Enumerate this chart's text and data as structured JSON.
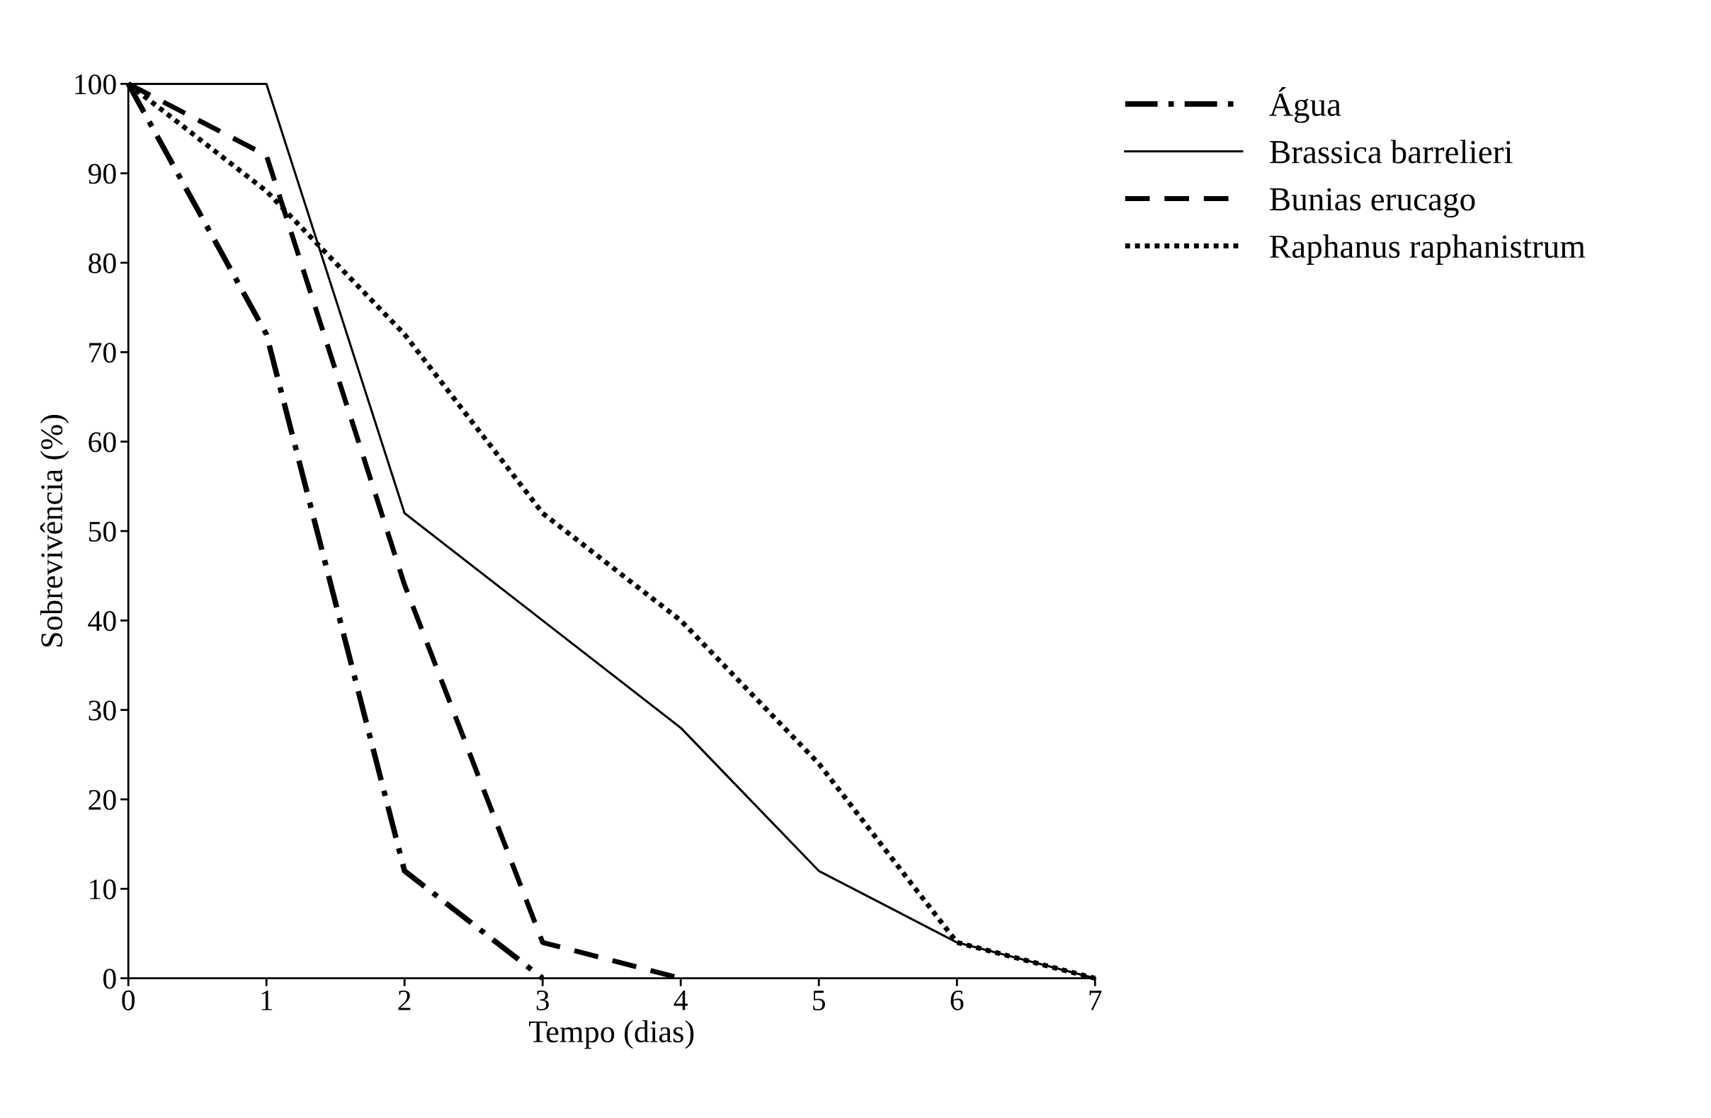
{
  "chart_data": {
    "type": "line",
    "xlabel": "Tempo (dias)",
    "ylabel": "Sobrevivência (%)",
    "x": [
      0,
      1,
      2,
      3,
      4,
      5,
      6,
      7
    ],
    "series": [
      {
        "name": "Água",
        "color": "#000000",
        "line_style": "dashdot",
        "values": [
          100,
          72,
          12,
          0,
          null,
          null,
          null,
          null
        ]
      },
      {
        "name": "Brassica barrelieri",
        "color": "#000000",
        "line_style": "solid",
        "values": [
          100,
          100,
          52,
          40,
          28,
          12,
          4,
          0
        ]
      },
      {
        "name": "Bunias erucago",
        "color": "#000000",
        "line_style": "dashed",
        "values": [
          100,
          92,
          44,
          4,
          0,
          null,
          null,
          null
        ]
      },
      {
        "name": "Raphanus raphanistrum",
        "color": "#000000",
        "line_style": "dotted",
        "values": [
          100,
          88,
          72,
          52,
          40,
          24,
          4,
          0
        ]
      }
    ],
    "xlim": [
      0,
      7
    ],
    "xticks": [
      0,
      1,
      2,
      3,
      4,
      5,
      6,
      7
    ],
    "ylim": [
      0,
      100
    ],
    "yticks": [
      0,
      10,
      20,
      30,
      40,
      50,
      60,
      70,
      80,
      90,
      100
    ],
    "grid": false,
    "legend": "top right",
    "marker": "none"
  }
}
